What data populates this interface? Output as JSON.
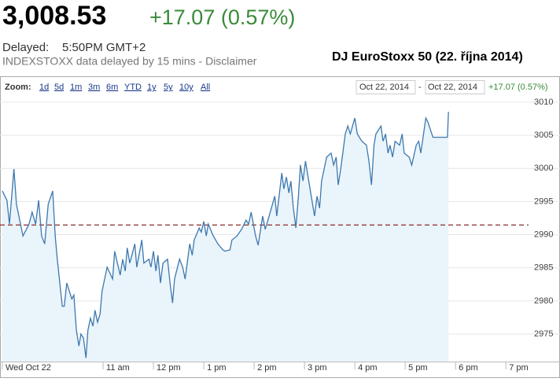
{
  "header": {
    "price": "3,008.53",
    "change": "+17.07 (0.57%)",
    "delayed_label": "Delayed:",
    "delayed_time": "5:50PM GMT+2",
    "source_note": "INDEXSTOXX data delayed by 15 mins - Disclaimer",
    "title": "DJ EuroStoxx 50 (22. října 2014)"
  },
  "chart_data": {
    "type": "line",
    "zoom_label": "Zoom:",
    "zoom_options": [
      "1d",
      "5d",
      "1m",
      "3m",
      "6m",
      "YTD",
      "1y",
      "5y",
      "10y",
      "All"
    ],
    "range_start": "Oct 22, 2014",
    "range_separator": "-",
    "range_end": "Oct 22, 2014",
    "range_change": "+17.07 (0.57%)",
    "color": "#3d78ad",
    "area_color": "#eaf4fb",
    "grid": true,
    "reference_line": 2991.46,
    "reference_color": "#8a2a2a",
    "xlim": [
      9,
      19.45
    ],
    "xticks": [
      {
        "value": 9,
        "label": "Wed Oct 22"
      },
      {
        "value": 11,
        "label": "11 am"
      },
      {
        "value": 12,
        "label": "12 pm"
      },
      {
        "value": 13,
        "label": "1 pm"
      },
      {
        "value": 14,
        "label": "2 pm"
      },
      {
        "value": 15,
        "label": "3 pm"
      },
      {
        "value": 16,
        "label": "4 pm"
      },
      {
        "value": 17,
        "label": "5 pm"
      },
      {
        "value": 18,
        "label": "6 pm"
      },
      {
        "value": 19,
        "label": "7 pm"
      }
    ],
    "ylim": [
      2970.85,
      3010.94
    ],
    "yticks": [
      2975,
      2980,
      2985,
      2990,
      2995,
      3000,
      3005,
      3010
    ],
    "x": [
      9.0,
      9.09,
      9.14,
      9.23,
      9.28,
      9.41,
      9.53,
      9.59,
      9.66,
      9.72,
      9.78,
      9.84,
      9.91,
      10.0,
      10.05,
      10.09,
      10.19,
      10.23,
      10.28,
      10.38,
      10.42,
      10.47,
      10.52,
      10.56,
      10.61,
      10.66,
      10.7,
      10.75,
      10.8,
      10.84,
      10.89,
      10.94,
      10.98,
      11.08,
      11.19,
      11.23,
      11.34,
      11.39,
      11.44,
      11.48,
      11.53,
      11.63,
      11.67,
      11.77,
      11.81,
      11.91,
      11.95,
      12.0,
      12.05,
      12.09,
      12.14,
      12.19,
      12.28,
      12.33,
      12.38,
      12.42,
      12.52,
      12.58,
      12.63,
      12.72,
      12.77,
      12.81,
      12.91,
      12.95,
      13.0,
      13.05,
      13.09,
      13.19,
      13.28,
      13.38,
      13.42,
      13.52,
      13.56,
      13.66,
      13.75,
      13.84,
      13.89,
      13.94,
      14.03,
      14.08,
      14.17,
      14.22,
      14.31,
      14.41,
      14.45,
      14.55,
      14.59,
      14.64,
      14.69,
      14.73,
      14.78,
      14.83,
      14.88,
      14.92,
      14.97,
      15.02,
      15.11,
      15.2,
      15.25,
      15.3,
      15.34,
      15.44,
      15.53,
      15.58,
      15.63,
      15.67,
      15.72,
      15.81,
      15.86,
      15.91,
      16.0,
      16.05,
      16.14,
      16.23,
      16.28,
      16.33,
      16.38,
      16.42,
      16.52,
      16.56,
      16.61,
      16.66,
      16.7,
      16.75,
      16.8,
      16.89,
      16.94,
      16.98,
      17.08,
      17.13,
      17.22,
      17.27,
      17.31,
      17.41,
      17.45,
      17.55,
      17.84,
      17.86
    ],
    "values": [
      2996.6,
      2995.2,
      2991.6,
      2999.9,
      2994.6,
      2989.8,
      2991.6,
      2993.4,
      2991.6,
      2995.2,
      2989.8,
      2988.6,
      2994.6,
      2996.6,
      2989.8,
      2986.3,
      2979.2,
      2979.2,
      2982.7,
      2980.3,
      2980.9,
      2975.6,
      2973.2,
      2975.0,
      2974.4,
      2971.4,
      2975.6,
      2977.4,
      2976.2,
      2978.6,
      2976.8,
      2978.0,
      2981.5,
      2985.1,
      2983.3,
      2987.5,
      2983.9,
      2986.3,
      2984.5,
      2988.0,
      2985.7,
      2988.6,
      2985.1,
      2989.2,
      2985.7,
      2986.3,
      2985.1,
      2987.5,
      2984.5,
      2986.9,
      2982.7,
      2985.7,
      2986.3,
      2982.7,
      2979.7,
      2983.3,
      2986.3,
      2985.1,
      2983.3,
      2988.6,
      2986.9,
      2989.2,
      2991.0,
      2990.4,
      2992.0,
      2989.8,
      2991.6,
      2989.8,
      2988.6,
      2987.7,
      2987.5,
      2987.7,
      2989.2,
      2989.8,
      2990.8,
      2992.2,
      2991.6,
      2993.4,
      2989.8,
      2988.4,
      2992.8,
      2990.8,
      2993.1,
      2995.8,
      2992.8,
      2999.3,
      2996.9,
      2998.7,
      2996.3,
      2998.1,
      2994.0,
      2991.0,
      2995.8,
      3000.5,
      2998.1,
      3001.1,
      2996.9,
      2992.8,
      2995.8,
      2994.0,
      2998.1,
      3001.7,
      3002.3,
      3000.5,
      3001.7,
      2997.5,
      2999.9,
      3005.2,
      3006.4,
      3005.2,
      3007.6,
      3005.2,
      3004.1,
      3003.5,
      3001.1,
      2997.5,
      3003.5,
      3005.2,
      3006.4,
      3004.1,
      3005.2,
      3002.3,
      3003.5,
      3001.7,
      3004.1,
      3003.5,
      3005.2,
      3002.3,
      3001.7,
      3000.5,
      3003.5,
      3004.1,
      3002.3,
      3007.6,
      3007.0,
      3004.7,
      3004.7,
      3008.53
    ]
  }
}
